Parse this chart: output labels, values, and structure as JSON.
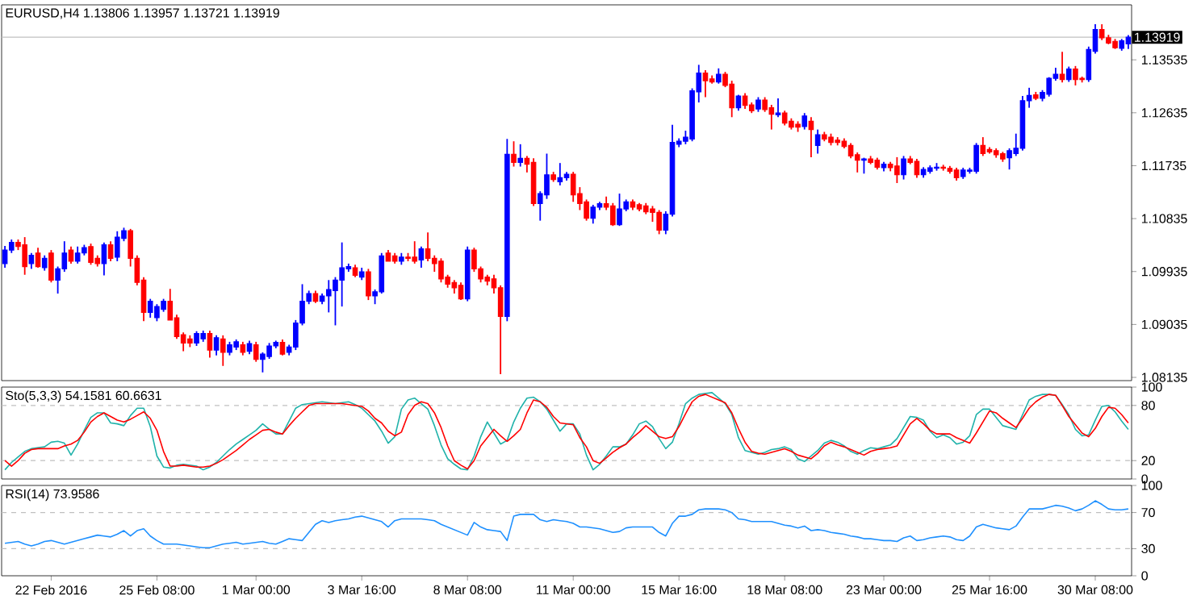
{
  "chart_data": [
    {
      "type": "candlestick",
      "title": "EURUSD,H4 1.13806 1.13957 1.13721 1.13919",
      "tick_labels": "y",
      "categories": [
        null,
        null,
        null,
        null,
        null,
        null,
        null,
        null,
        null,
        null,
        null,
        null,
        null,
        null,
        null,
        null,
        null,
        null,
        null,
        null,
        null,
        null,
        null,
        null,
        null,
        null,
        null,
        null,
        null,
        null,
        null,
        null,
        null,
        null,
        null,
        null,
        null,
        null,
        null,
        null,
        null,
        null,
        null,
        null,
        null,
        null,
        null,
        null,
        null,
        null,
        null,
        null,
        null,
        null,
        null,
        null,
        null,
        null,
        null,
        null,
        null,
        null,
        null,
        null,
        null,
        null,
        null,
        null,
        null,
        null,
        null,
        null,
        null,
        null,
        null,
        null,
        null,
        null,
        null,
        null,
        null,
        null,
        null,
        null,
        null,
        null,
        null,
        null,
        null,
        null,
        null,
        null,
        null,
        null,
        null,
        null,
        null,
        null,
        null,
        null,
        null,
        null,
        null,
        null,
        null,
        null,
        null,
        null,
        null,
        null,
        null,
        null,
        null,
        null,
        null,
        null,
        null,
        null,
        null,
        null,
        null,
        null,
        null,
        null,
        null,
        null,
        null,
        null,
        null,
        null,
        null,
        null,
        null,
        null,
        null,
        null,
        null,
        null,
        null,
        null,
        null,
        null,
        null,
        null,
        null,
        null,
        null,
        null,
        null,
        null,
        null,
        null,
        null,
        null,
        null,
        null,
        null,
        null,
        null,
        null,
        null,
        null,
        null,
        null,
        null,
        null,
        null,
        null,
        null,
        null,
        null
      ],
      "colors": [
        "#0000ff",
        "#0000ff",
        "#ff0000",
        "#ff0000",
        "#0000ff",
        "#ff0000",
        "#0000ff",
        "#ff0000",
        "#0000ff",
        "#0000ff",
        "#ff0000",
        "#0000ff",
        "#0000ff",
        "#ff0000",
        "#ff0000",
        "#0000ff",
        "#ff0000",
        "#0000ff",
        "#0000ff",
        "#ff0000",
        "#ff0000",
        "#ff0000",
        "#0000ff",
        "#0000ff",
        "#0000ff",
        "#ff0000",
        "#ff0000",
        "#ff0000",
        "#ff0000",
        "#0000ff",
        "#0000ff",
        "#ff0000",
        "#0000ff",
        "#ff0000",
        "#0000ff",
        "#0000ff",
        "#ff0000",
        "#0000ff",
        "#ff0000",
        "#0000ff",
        "#0000ff",
        "#0000ff",
        "#ff0000",
        "#0000ff",
        "#0000ff",
        "#0000ff",
        "#0000ff",
        "#ff0000",
        "#0000ff",
        "#0000ff",
        "#0000ff",
        "#0000ff",
        "#0000ff",
        "#ff0000",
        "#0000ff",
        "#ff0000",
        "#0000ff",
        "#0000ff",
        "#ff0000",
        "#ff0000",
        "#0000ff",
        "#ff0000",
        "#ff0000",
        "#0000ff",
        "#ff0000",
        "#ff0000",
        "#ff0000",
        "#ff0000",
        "#ff0000",
        "#ff0000",
        "#0000ff",
        "#ff0000",
        "#ff0000",
        "#ff0000",
        "#ff0000",
        "#ff0000",
        "#0000ff",
        "#ff0000",
        "#0000ff",
        "#ff0000",
        "#ff0000",
        "#0000ff",
        "#0000ff",
        "#ff0000",
        "#0000ff",
        "#0000ff",
        "#ff0000",
        "#ff0000",
        "#ff0000",
        "#0000ff",
        "#0000ff",
        "#ff0000",
        "#ff0000",
        "#0000ff",
        "#0000ff",
        "#ff0000",
        "#ff0000",
        "#ff0000",
        "#ff0000",
        "#ff0000",
        "#0000ff",
        "#0000ff",
        "#0000ff",
        "#0000ff",
        "#0000ff",
        "#0000ff",
        "#ff0000",
        "#ff0000",
        "#0000ff",
        "#ff0000",
        "#ff0000",
        "#0000ff",
        "#ff0000",
        "#ff0000",
        "#0000ff",
        "#ff0000",
        "#ff0000",
        "#0000ff",
        "#ff0000",
        "#ff0000",
        "#ff0000",
        "#0000ff",
        "#ff0000",
        "#0000ff",
        "#ff0000",
        "#ff0000",
        "#ff0000",
        "#ff0000",
        "#ff0000",
        "#ff0000",
        "#0000ff",
        "#ff0000",
        "#ff0000",
        "#0000ff",
        "#ff0000",
        "#ff0000",
        "#0000ff",
        "#ff0000",
        "#ff0000",
        "#0000ff",
        "#0000ff",
        "#0000ff",
        "#ff0000",
        "#ff0000",
        "#ff0000",
        "#0000ff",
        "#0000ff",
        "#0000ff",
        "#ff0000",
        "#ff0000",
        "#ff0000",
        "#ff0000",
        "#0000ff",
        "#0000ff",
        "#0000ff",
        "#0000ff",
        "#ff0000",
        "#0000ff",
        "#0000ff",
        "#0000ff",
        "#ff0000",
        "#0000ff",
        "#ff0000",
        "#ff0000",
        "#0000ff",
        "#0000ff",
        "#ff0000",
        "#ff0000",
        "#ff0000",
        "#0000ff",
        "#0000ff"
      ],
      "ylim": [
        1.0808,
        1.1447
      ],
      "yticks": [
        1.08135,
        1.09035,
        1.09935,
        1.10835,
        1.11735,
        1.12635,
        1.13535
      ],
      "ref_lines": [
        {
          "axis": "y",
          "value": 1.13919,
          "label": "1.13919",
          "color": "#c0c0c0",
          "line_style": "solid"
        }
      ],
      "ohlc": [
        [
          1.1007,
          1.1037,
          1.1,
          1.103
        ],
        [
          1.103,
          1.1048,
          1.1025,
          1.1043
        ],
        [
          1.1043,
          1.1048,
          1.103,
          1.1036
        ],
        [
          1.1039,
          1.1052,
          1.0988,
          1.1002
        ],
        [
          1.1007,
          1.1025,
          1.0998,
          1.1021
        ],
        [
          1.1025,
          1.1034,
          1.1,
          1.1002
        ],
        [
          1.1,
          1.1021,
          1.0995,
          1.1016
        ],
        [
          1.1025,
          1.103,
          1.0975,
          1.0979
        ],
        [
          1.0979,
          1.1002,
          1.0956,
          1.0998
        ],
        [
          1.0998,
          1.1045,
          1.0993,
          1.1025
        ],
        [
          1.103,
          1.1036,
          1.1007,
          1.1011
        ],
        [
          1.1011,
          1.1036,
          1.1007,
          1.1025
        ],
        [
          1.1025,
          1.1039,
          1.1021,
          1.1034
        ],
        [
          1.1036,
          1.1041,
          1.1005,
          1.1009
        ],
        [
          1.1016,
          1.1021,
          1.1002,
          1.1007
        ],
        [
          1.1007,
          1.1043,
          1.0987,
          1.1039
        ],
        [
          1.1039,
          1.1045,
          1.1011,
          1.1016
        ],
        [
          1.1018,
          1.1062,
          1.1011,
          1.1052
        ],
        [
          1.105,
          1.1068,
          1.1045,
          1.1063
        ],
        [
          1.1063,
          1.1066,
          1.1002,
          1.1016
        ],
        [
          1.1016,
          1.1021,
          1.097,
          1.0975
        ],
        [
          1.0979,
          1.0984,
          1.0909,
          1.0924
        ],
        [
          1.0924,
          1.0947,
          1.0915,
          1.0943
        ],
        [
          1.0915,
          1.0938,
          1.0909,
          1.0934
        ],
        [
          1.0929,
          1.0947,
          1.0925,
          1.0943
        ],
        [
          1.0943,
          1.0964,
          1.0911,
          1.0911
        ],
        [
          1.0915,
          1.092,
          1.0879,
          1.0883
        ],
        [
          1.0886,
          1.089,
          1.0858,
          1.0872
        ],
        [
          1.0879,
          1.0885,
          1.0865,
          1.0872
        ],
        [
          1.0872,
          1.0892,
          1.0867,
          1.0888
        ],
        [
          1.0879,
          1.0893,
          1.0874,
          1.0888
        ],
        [
          1.0888,
          1.0893,
          1.0847,
          1.086
        ],
        [
          1.086,
          1.0885,
          1.0851,
          1.0881
        ],
        [
          1.0879,
          1.0885,
          1.0833,
          1.0856
        ],
        [
          1.0856,
          1.0874,
          1.0851,
          1.0869
        ],
        [
          1.0865,
          1.0878,
          1.086,
          1.0874
        ],
        [
          1.0869,
          1.0874,
          1.0851,
          1.0856
        ],
        [
          1.0858,
          1.0876,
          1.0853,
          1.0871
        ],
        [
          1.0869,
          1.0874,
          1.084,
          1.0844
        ],
        [
          1.0844,
          1.0856,
          1.0822,
          1.0853
        ],
        [
          1.0849,
          1.0872,
          1.0845,
          1.0867
        ],
        [
          1.0867,
          1.0876,
          1.0863,
          1.0873
        ],
        [
          1.0873,
          1.0878,
          1.0851,
          1.0853
        ],
        [
          1.0856,
          1.0869,
          1.0851,
          1.0865
        ],
        [
          1.0865,
          1.0911,
          1.086,
          1.0906
        ],
        [
          1.0906,
          1.0972,
          1.0902,
          1.0943
        ],
        [
          1.0943,
          1.0961,
          1.0938,
          1.0956
        ],
        [
          1.0956,
          1.0961,
          1.094,
          1.0943
        ],
        [
          1.0943,
          1.0956,
          1.0938,
          1.0952
        ],
        [
          1.0952,
          1.0979,
          1.0924,
          1.0963
        ],
        [
          1.0961,
          1.0984,
          1.0902,
          1.0979
        ],
        [
          1.0979,
          1.1043,
          1.0934,
          1.1
        ],
        [
          1.0998,
          1.1007,
          1.0993,
          1.1002
        ],
        [
          1.1,
          1.1005,
          1.0984,
          1.0987
        ],
        [
          1.0984,
          1.1,
          1.0979,
          1.0993
        ],
        [
          1.0993,
          1.0998,
          1.0945,
          1.0952
        ],
        [
          1.0952,
          1.0963,
          1.0938,
          1.0959
        ],
        [
          1.0959,
          1.1025,
          1.0956,
          1.102
        ],
        [
          1.1025,
          1.103,
          1.1011,
          1.1011
        ],
        [
          1.102,
          1.1025,
          1.1007,
          1.1011
        ],
        [
          1.1011,
          1.1025,
          1.1005,
          1.1018
        ],
        [
          1.1018,
          1.1025,
          1.1011,
          1.1016
        ],
        [
          1.1018,
          1.1045,
          1.1007,
          1.1011
        ],
        [
          1.1013,
          1.1036,
          1.1,
          1.1032
        ],
        [
          1.1032,
          1.106,
          1.1011,
          1.1016
        ],
        [
          1.1016,
          1.1021,
          1.0993,
          1.1007
        ],
        [
          1.1011,
          1.1016,
          1.0975,
          1.0981
        ],
        [
          1.0984,
          1.0988,
          1.0966,
          1.0972
        ],
        [
          1.0975,
          1.0979,
          1.0956,
          1.0966
        ],
        [
          1.097,
          1.0975,
          1.0945,
          1.0947
        ],
        [
          1.0947,
          1.1036,
          1.0943,
          1.103
        ],
        [
          1.103,
          1.1034,
          1.0993,
          1.0998
        ],
        [
          1.0998,
          1.1002,
          1.0975,
          1.0981
        ],
        [
          1.0984,
          1.0988,
          1.097,
          1.0977
        ],
        [
          1.0981,
          1.0988,
          1.0956,
          1.0966
        ],
        [
          1.0966,
          1.097,
          1.0819,
          1.0917
        ],
        [
          1.0917,
          1.1219,
          1.0909,
          1.1193
        ],
        [
          1.1193,
          1.1215,
          1.1172,
          1.1179
        ],
        [
          1.1179,
          1.121,
          1.1172,
          1.1186
        ],
        [
          1.1186,
          1.119,
          1.1162,
          1.1176
        ],
        [
          1.1179,
          1.1186,
          1.1105,
          1.1109
        ],
        [
          1.1109,
          1.113,
          1.108,
          1.1126
        ],
        [
          1.1124,
          1.1194,
          1.1117,
          1.1158
        ],
        [
          1.1158,
          1.1163,
          1.1146,
          1.115
        ],
        [
          1.1146,
          1.1178,
          1.114,
          1.1153
        ],
        [
          1.1153,
          1.1163,
          1.1148,
          1.1159
        ],
        [
          1.1159,
          1.1163,
          1.1112,
          1.1124
        ],
        [
          1.1126,
          1.1137,
          1.1098,
          1.1109
        ],
        [
          1.1112,
          1.1116,
          1.108,
          1.1084
        ],
        [
          1.1084,
          1.1107,
          1.1075,
          1.1103
        ],
        [
          1.1103,
          1.1112,
          1.1098,
          1.1109
        ],
        [
          1.1109,
          1.1121,
          1.1098,
          1.1103
        ],
        [
          1.1105,
          1.111,
          1.1071,
          1.1073
        ],
        [
          1.1073,
          1.1126,
          1.1071,
          1.11
        ],
        [
          1.11,
          1.1116,
          1.1096,
          1.1112
        ],
        [
          1.1112,
          1.1116,
          1.1098,
          1.1103
        ],
        [
          1.1107,
          1.111,
          1.1096,
          1.11
        ],
        [
          1.1105,
          1.111,
          1.1091,
          1.1095
        ],
        [
          1.11,
          1.1105,
          1.1078,
          1.1094
        ],
        [
          1.1094,
          1.1098,
          1.1057,
          1.1064
        ],
        [
          1.1064,
          1.1096,
          1.1057,
          1.1091
        ],
        [
          1.1091,
          1.1243,
          1.1087,
          1.1213
        ],
        [
          1.121,
          1.122,
          1.1205,
          1.1215
        ],
        [
          1.1215,
          1.1233,
          1.121,
          1.1222
        ],
        [
          1.1219,
          1.1305,
          1.1215,
          1.1301
        ],
        [
          1.1299,
          1.1345,
          1.1281,
          1.1331
        ],
        [
          1.1331,
          1.1336,
          1.129,
          1.1318
        ],
        [
          1.1321,
          1.1327,
          1.1313,
          1.1316
        ],
        [
          1.1316,
          1.1339,
          1.1313,
          1.1329
        ],
        [
          1.1329,
          1.1333,
          1.1307,
          1.131
        ],
        [
          1.1312,
          1.1318,
          1.1256,
          1.1272
        ],
        [
          1.1272,
          1.1294,
          1.1267,
          1.1292
        ],
        [
          1.1292,
          1.1297,
          1.127,
          1.1276
        ],
        [
          1.1277,
          1.1281,
          1.1263,
          1.1267
        ],
        [
          1.127,
          1.129,
          1.1265,
          1.1285
        ],
        [
          1.1285,
          1.129,
          1.1265,
          1.1269
        ],
        [
          1.1272,
          1.1277,
          1.1235,
          1.1261
        ],
        [
          1.126,
          1.1288,
          1.1256,
          1.1263
        ],
        [
          1.1263,
          1.1267,
          1.1242,
          1.1246
        ],
        [
          1.1249,
          1.1254,
          1.1235,
          1.1239
        ],
        [
          1.1244,
          1.1249,
          1.1231,
          1.1239
        ],
        [
          1.124,
          1.1263,
          1.1235,
          1.1258
        ],
        [
          1.1249,
          1.1256,
          1.1188,
          1.1235
        ],
        [
          1.1208,
          1.1235,
          1.1194,
          1.1226
        ],
        [
          1.1226,
          1.1231,
          1.1215,
          1.1219
        ],
        [
          1.1222,
          1.1228,
          1.1208,
          1.1213
        ],
        [
          1.1217,
          1.1222,
          1.1208,
          1.1213
        ],
        [
          1.1215,
          1.122,
          1.1203,
          1.1206
        ],
        [
          1.1208,
          1.1212,
          1.1186,
          1.119
        ],
        [
          1.1192,
          1.1196,
          1.1162,
          1.1183
        ],
        [
          1.1183,
          1.1187,
          1.116,
          1.1185
        ],
        [
          1.1185,
          1.119,
          1.1176,
          1.1179
        ],
        [
          1.1183,
          1.1187,
          1.1167,
          1.1171
        ],
        [
          1.117,
          1.118,
          1.1164,
          1.1176
        ],
        [
          1.1176,
          1.118,
          1.1164,
          1.117
        ],
        [
          1.1173,
          1.1188,
          1.1144,
          1.1158
        ],
        [
          1.1158,
          1.119,
          1.115,
          1.1185
        ],
        [
          1.1185,
          1.119,
          1.1176,
          1.1179
        ],
        [
          1.1181,
          1.1185,
          1.1153,
          1.1158
        ],
        [
          1.1158,
          1.1171,
          1.1153,
          1.1167
        ],
        [
          1.1164,
          1.1174,
          1.116,
          1.117
        ],
        [
          1.1169,
          1.1178,
          1.1165,
          1.1171
        ],
        [
          1.1171,
          1.1175,
          1.1165,
          1.1169
        ],
        [
          1.1169,
          1.1173,
          1.116,
          1.1164
        ],
        [
          1.1166,
          1.117,
          1.1148,
          1.1153
        ],
        [
          1.1155,
          1.117,
          1.1151,
          1.1166
        ],
        [
          1.1164,
          1.117,
          1.116,
          1.1166
        ],
        [
          1.1164,
          1.1212,
          1.116,
          1.1208
        ],
        [
          1.1208,
          1.1222,
          1.119,
          1.1194
        ],
        [
          1.1201,
          1.1205,
          1.1194,
          1.1197
        ],
        [
          1.1199,
          1.1203,
          1.1187,
          1.1192
        ],
        [
          1.1194,
          1.1197,
          1.118,
          1.1185
        ],
        [
          1.1187,
          1.1203,
          1.1167,
          1.1199
        ],
        [
          1.1194,
          1.1228,
          1.119,
          1.1203
        ],
        [
          1.1203,
          1.1292,
          1.1199,
          1.1284
        ],
        [
          1.1284,
          1.1306,
          1.1272,
          1.1293
        ],
        [
          1.1294,
          1.1299,
          1.1285,
          1.1288
        ],
        [
          1.1288,
          1.1302,
          1.1283,
          1.1298
        ],
        [
          1.1295,
          1.1324,
          1.1291,
          1.1322
        ],
        [
          1.1322,
          1.134,
          1.1318,
          1.1329
        ],
        [
          1.1329,
          1.1367,
          1.1315,
          1.132
        ],
        [
          1.132,
          1.1342,
          1.1316,
          1.1338
        ],
        [
          1.1338,
          1.1343,
          1.131,
          1.132
        ],
        [
          1.1322,
          1.1325,
          1.1315,
          1.132
        ],
        [
          1.132,
          1.1376,
          1.1316,
          1.1371
        ],
        [
          1.1368,
          1.1414,
          1.1364,
          1.1405
        ],
        [
          1.1405,
          1.1414,
          1.1387,
          1.1391
        ],
        [
          1.1391,
          1.1396,
          1.138,
          1.1382
        ],
        [
          1.1385,
          1.1389,
          1.1372,
          1.1374
        ],
        [
          1.1373,
          1.1389,
          1.1369,
          1.1386
        ],
        [
          1.13806,
          1.13957,
          1.13721,
          1.13919
        ]
      ]
    },
    {
      "type": "line",
      "title": "Sto(5,3,3) 54.1581 60.6631",
      "tick_labels": "y",
      "categories": [
        null,
        null,
        null,
        null,
        null,
        null,
        null,
        null,
        null,
        null,
        null,
        null,
        null,
        null,
        null,
        null,
        null,
        null,
        null,
        null,
        null,
        null,
        null,
        null,
        null,
        null,
        null,
        null,
        null,
        null,
        null,
        null,
        null,
        null,
        null,
        null,
        null,
        null,
        null,
        null,
        null,
        null,
        null,
        null,
        null,
        null,
        null,
        null,
        null,
        null,
        null,
        null,
        null,
        null,
        null,
        null,
        null,
        null,
        null,
        null,
        null,
        null,
        null,
        null,
        null,
        null,
        null,
        null,
        null,
        null,
        null,
        null,
        null,
        null,
        null,
        null,
        null,
        null,
        null,
        null,
        null,
        null,
        null,
        null,
        null,
        null,
        null,
        null,
        null,
        null,
        null,
        null,
        null,
        null,
        null,
        null,
        null,
        null,
        null,
        null,
        null,
        null,
        null,
        null,
        null,
        null,
        null,
        null,
        null,
        null,
        null,
        null,
        null,
        null,
        null,
        null,
        null,
        null,
        null,
        null,
        null,
        null,
        null,
        null,
        null,
        null,
        null,
        null,
        null,
        null,
        null,
        null,
        null,
        null,
        null,
        null,
        null,
        null,
        null,
        null,
        null,
        null,
        null,
        null,
        null,
        null,
        null,
        null,
        null,
        null,
        null,
        null,
        null,
        null,
        null,
        null,
        null,
        null,
        null,
        null,
        null,
        null,
        null,
        null,
        null,
        null,
        null,
        null,
        null,
        null,
        null
      ],
      "ylim": [
        0,
        100
      ],
      "yticks": [
        0,
        20,
        80,
        100
      ],
      "ref_lines": [
        {
          "axis": "y",
          "value": 20,
          "color": "#c0c0c0",
          "line_style": "dashed"
        },
        {
          "axis": "y",
          "value": 80,
          "color": "#c0c0c0",
          "line_style": "dashed"
        }
      ],
      "series": [
        {
          "color": "#20b2aa",
          "values": [
            10,
            18,
            24,
            30,
            33,
            34,
            35,
            40,
            41,
            39,
            26,
            38,
            53,
            67,
            72,
            72,
            61,
            60,
            58,
            69,
            77,
            77,
            57,
            25,
            13,
            12,
            15,
            16,
            15,
            14,
            10,
            13,
            18,
            25,
            32,
            38,
            43,
            48,
            53,
            60,
            54,
            49,
            49,
            63,
            77,
            81,
            82,
            83,
            84,
            83,
            82,
            83,
            84,
            81,
            77,
            70,
            63,
            52,
            39,
            46,
            76,
            86,
            88,
            82,
            76,
            58,
            37,
            22,
            16,
            11,
            10,
            25,
            46,
            62,
            50,
            38,
            42,
            62,
            77,
            88,
            89,
            84,
            76,
            64,
            52,
            60,
            60,
            49,
            26,
            10,
            16,
            25,
            35,
            35,
            38,
            48,
            60,
            63,
            57,
            44,
            33,
            40,
            60,
            82,
            88,
            92,
            93,
            94,
            88,
            82,
            70,
            45,
            31,
            29,
            27,
            29,
            32,
            33,
            35,
            32,
            22,
            19,
            25,
            31,
            39,
            42,
            40,
            36,
            30,
            27,
            31,
            34,
            33,
            35,
            37,
            44,
            56,
            68,
            67,
            64,
            52,
            45,
            48,
            45,
            38,
            40,
            47,
            70,
            76,
            76,
            67,
            58,
            56,
            54,
            70,
            86,
            90,
            92,
            92,
            91,
            81,
            70,
            54,
            47,
            48,
            64,
            79,
            80,
            73,
            63,
            54
          ]
        },
        {
          "color": "#ff0000",
          "values": [
            20,
            14,
            20,
            28,
            32,
            33,
            33,
            33,
            33,
            36,
            38,
            42,
            51,
            62,
            68,
            72,
            68,
            64,
            62,
            65,
            69,
            73,
            66,
            53,
            30,
            14,
            14,
            15,
            14,
            13,
            13,
            14,
            17,
            21,
            26,
            31,
            37,
            43,
            48,
            53,
            54,
            51,
            49,
            58,
            66,
            73,
            80,
            82,
            82,
            82,
            82,
            82,
            81,
            80,
            79,
            74,
            66,
            61,
            52,
            47,
            51,
            70,
            80,
            84,
            82,
            72,
            56,
            36,
            20,
            15,
            11,
            20,
            36,
            45,
            54,
            47,
            41,
            47,
            54,
            72,
            86,
            84,
            78,
            68,
            61,
            60,
            59,
            45,
            35,
            20,
            17,
            23,
            29,
            34,
            38,
            45,
            51,
            58,
            52,
            46,
            44,
            46,
            57,
            71,
            84,
            90,
            92,
            89,
            86,
            83,
            72,
            55,
            40,
            30,
            28,
            27,
            29,
            31,
            33,
            30,
            26,
            24,
            22,
            28,
            36,
            40,
            37,
            35,
            32,
            29,
            26,
            30,
            32,
            33,
            34,
            36,
            48,
            60,
            66,
            60,
            53,
            49,
            49,
            49,
            45,
            42,
            39,
            50,
            62,
            74,
            72,
            66,
            61,
            56,
            66,
            77,
            84,
            89,
            92,
            91,
            80,
            68,
            59,
            50,
            46,
            55,
            68,
            78,
            77,
            70,
            61
          ]
        }
      ]
    },
    {
      "type": "line",
      "title": "RSI(14) 73.9586",
      "categories": [
        null,
        null,
        null,
        null,
        null,
        null,
        null,
        "22 Feb 2016",
        null,
        null,
        null,
        null,
        null,
        null,
        null,
        null,
        null,
        null,
        null,
        null,
        null,
        null,
        null,
        "25 Feb 08:00",
        null,
        null,
        null,
        null,
        null,
        null,
        null,
        null,
        null,
        null,
        null,
        null,
        null,
        null,
        "1 Mar 00:00",
        null,
        null,
        null,
        null,
        null,
        null,
        null,
        null,
        null,
        null,
        null,
        null,
        null,
        null,
        null,
        "3 Mar 16:00",
        null,
        null,
        null,
        null,
        null,
        null,
        null,
        null,
        null,
        null,
        null,
        null,
        null,
        null,
        null,
        "8 Mar 08:00",
        null,
        null,
        null,
        null,
        null,
        null,
        null,
        null,
        null,
        null,
        null,
        null,
        null,
        null,
        null,
        "11 Mar 00:00",
        null,
        null,
        null,
        null,
        null,
        null,
        null,
        null,
        null,
        null,
        null,
        null,
        null,
        null,
        null,
        "15 Mar 16:00",
        null,
        null,
        null,
        null,
        null,
        null,
        null,
        null,
        null,
        null,
        null,
        null,
        null,
        null,
        null,
        "18 Mar 08:00",
        null,
        null,
        null,
        null,
        null,
        null,
        null,
        null,
        null,
        null,
        null,
        null,
        null,
        null,
        "23 Mar 00:00",
        null,
        null,
        null,
        null,
        null,
        null,
        null,
        null,
        null,
        null,
        null,
        null,
        null,
        null,
        null,
        "25 Mar 16:00",
        null,
        null,
        null,
        null,
        null,
        null,
        null,
        null,
        null,
        null,
        null,
        null,
        null,
        null,
        null,
        "30 Mar 08:00",
        null,
        null,
        null,
        null,
        null
      ],
      "ylim": [
        0,
        100
      ],
      "yticks": [
        0,
        30,
        70,
        100
      ],
      "ref_lines": [
        {
          "axis": "y",
          "value": 30,
          "color": "#c0c0c0",
          "line_style": "dashed"
        },
        {
          "axis": "y",
          "value": 70,
          "color": "#c0c0c0",
          "line_style": "dashed"
        }
      ],
      "series": [
        {
          "color": "#1e90ff",
          "values": [
            36,
            37,
            38,
            35,
            33,
            35,
            38,
            39,
            37,
            35,
            37,
            39,
            41,
            43,
            45,
            44,
            43,
            46,
            50,
            44,
            50,
            52,
            44,
            39,
            35,
            35,
            35,
            34,
            33,
            32,
            31,
            31,
            33,
            35,
            36,
            37,
            35,
            36,
            37,
            38,
            36,
            35,
            38,
            41,
            40,
            39,
            48,
            57,
            61,
            59,
            61,
            62,
            63,
            65,
            66,
            64,
            62,
            60,
            54,
            61,
            63,
            63,
            63,
            63,
            62,
            61,
            57,
            54,
            51,
            48,
            45,
            59,
            54,
            51,
            50,
            49,
            39,
            66,
            68,
            68,
            68,
            62,
            60,
            62,
            61,
            60,
            58,
            54,
            54,
            53,
            52,
            50,
            48,
            49,
            53,
            54,
            54,
            54,
            54,
            48,
            44,
            58,
            66,
            66,
            68,
            73,
            74,
            74,
            74,
            73,
            70,
            63,
            62,
            60,
            60,
            60,
            60,
            58,
            56,
            55,
            53,
            55,
            50,
            51,
            50,
            48,
            47,
            46,
            44,
            43,
            41,
            41,
            40,
            39,
            39,
            38,
            42,
            44,
            39,
            40,
            42,
            43,
            44,
            43,
            40,
            39,
            44,
            54,
            57,
            55,
            53,
            52,
            51,
            55,
            65,
            74,
            74,
            74,
            76,
            78,
            77,
            75,
            72,
            74,
            78,
            83,
            79,
            74,
            73,
            73,
            74
          ]
        }
      ]
    }
  ]
}
